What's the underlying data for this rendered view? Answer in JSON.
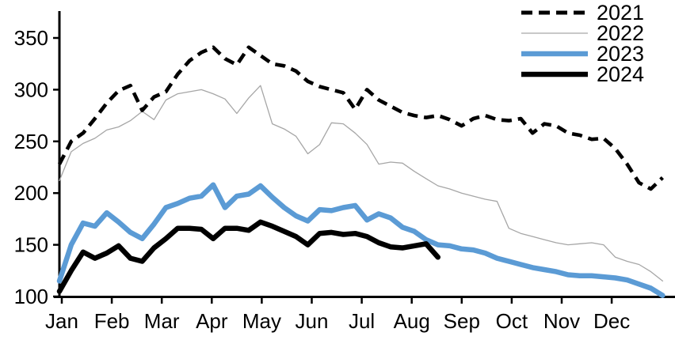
{
  "chart_data": {
    "type": "line",
    "title": "",
    "x_unit": "week-of-year",
    "months": [
      "Jan",
      "Feb",
      "Mar",
      "Apr",
      "May",
      "Jun",
      "Jul",
      "Aug",
      "Sep",
      "Oct",
      "Nov",
      "Dec"
    ],
    "y_ticks": [
      "100",
      "150",
      "200",
      "250",
      "300",
      "350"
    ],
    "ylim": [
      100,
      376
    ],
    "grid": false,
    "legend_position": "top-right",
    "series": [
      {
        "name": "2021",
        "color": "#000000",
        "line_style": "dashed",
        "line_width": 4.6,
        "values": [
          228,
          250,
          258,
          272,
          287,
          299,
          304,
          280,
          293,
          298,
          315,
          328,
          336,
          341,
          330,
          324,
          341,
          333,
          325,
          323,
          318,
          308,
          303,
          300,
          297,
          281,
          300,
          290,
          284,
          278,
          275,
          273,
          275,
          271,
          265,
          272,
          275,
          271,
          270,
          272,
          258,
          267,
          265,
          258,
          256,
          252,
          253,
          243,
          228,
          210,
          204,
          215
        ]
      },
      {
        "name": "2022",
        "color": "#a6a6a6",
        "line_style": "solid",
        "line_width": 1.3,
        "values": [
          212,
          240,
          248,
          253,
          261,
          264,
          270,
          279,
          271,
          290,
          296,
          298,
          300,
          296,
          291,
          277,
          292,
          304,
          267,
          262,
          255,
          238,
          247,
          268,
          267,
          258,
          247,
          228,
          230,
          229,
          221,
          214,
          207,
          204,
          200,
          197,
          194,
          192,
          166,
          161,
          158,
          155,
          152,
          150,
          151,
          152,
          150,
          138,
          134,
          131,
          124,
          115
        ]
      },
      {
        "name": "2023",
        "color": "#5b9bd5",
        "line_style": "solid",
        "line_width": 6.5,
        "values": [
          115,
          150,
          171,
          168,
          181,
          172,
          162,
          156,
          170,
          186,
          190,
          195,
          197,
          208,
          186,
          197,
          199,
          207,
          196,
          186,
          178,
          173,
          184,
          183,
          186,
          188,
          174,
          180,
          176,
          167,
          163,
          155,
          150,
          149,
          146,
          145,
          142,
          137,
          134,
          131,
          128,
          126,
          124,
          121,
          120,
          120,
          119,
          118,
          116,
          112,
          108,
          101
        ]
      },
      {
        "name": "2024",
        "color": "#000000",
        "line_style": "solid",
        "line_width": 6.5,
        "values": [
          105,
          125,
          143,
          137,
          142,
          149,
          137,
          134,
          147,
          156,
          166,
          166,
          165,
          156,
          166,
          166,
          164,
          172,
          168,
          163,
          158,
          150,
          161,
          162,
          160,
          161,
          158,
          152,
          148,
          147,
          149,
          151,
          138
        ]
      }
    ]
  }
}
